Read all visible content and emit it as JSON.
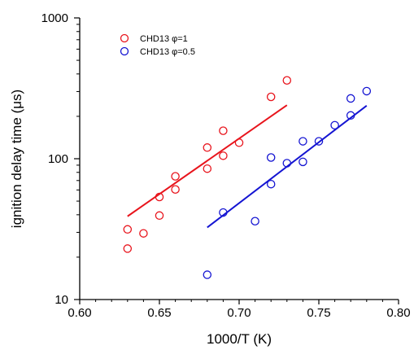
{
  "chart_data": {
    "type": "scatter",
    "title": "",
    "xlabel": "1000/T (K)",
    "ylabel": "ignition delay time (μs)",
    "xlim": [
      0.6,
      0.8
    ],
    "ylim": [
      10,
      1000
    ],
    "yscale": "log",
    "grid": false,
    "legend_position": "top-left",
    "x_ticks": [
      "0.60",
      "0.65",
      "0.70",
      "0.75",
      "0.80"
    ],
    "y_ticks": [
      "10",
      "100",
      "1000"
    ],
    "series": [
      {
        "name": "CHD13 φ=1",
        "color": "#e8141c",
        "marker": "open-circle",
        "points": [
          [
            0.63,
            23
          ],
          [
            0.63,
            31.5
          ],
          [
            0.64,
            29.5
          ],
          [
            0.65,
            39.5
          ],
          [
            0.65,
            53.5
          ],
          [
            0.66,
            60.5
          ],
          [
            0.66,
            75
          ],
          [
            0.68,
            85
          ],
          [
            0.68,
            120
          ],
          [
            0.69,
            105
          ],
          [
            0.69,
            158
          ],
          [
            0.7,
            130
          ],
          [
            0.72,
            275
          ],
          [
            0.73,
            360
          ]
        ],
        "fit": {
          "x": [
            0.63,
            0.73
          ],
          "y": [
            39,
            240
          ]
        }
      },
      {
        "name": "CHD13 φ=0.5",
        "color": "#1414d2",
        "marker": "open-circle",
        "points": [
          [
            0.68,
            15
          ],
          [
            0.69,
            41.5
          ],
          [
            0.71,
            36
          ],
          [
            0.72,
            66
          ],
          [
            0.72,
            102
          ],
          [
            0.73,
            93
          ],
          [
            0.74,
            95
          ],
          [
            0.74,
            133
          ],
          [
            0.75,
            133
          ],
          [
            0.76,
            173
          ],
          [
            0.77,
            203
          ],
          [
            0.77,
            268
          ],
          [
            0.78,
            302
          ]
        ],
        "fit": {
          "x": [
            0.68,
            0.78
          ],
          "y": [
            32.5,
            238
          ]
        }
      }
    ]
  }
}
